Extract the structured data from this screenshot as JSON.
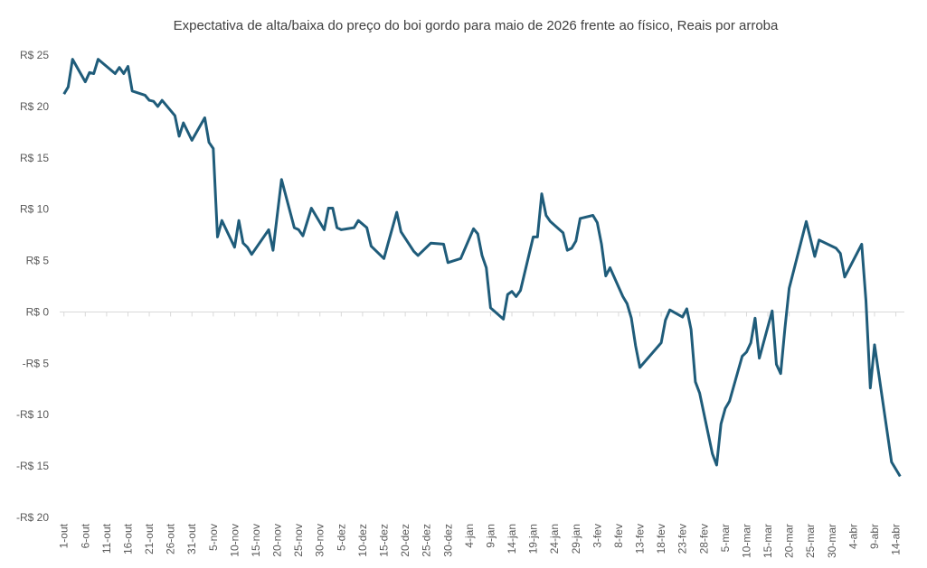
{
  "chart_data": {
    "type": "line",
    "title": "Expectativa de alta/baixa do preço do boi gordo para maio de 2026 frente ao físico, Reais por arroba",
    "x": [
      0,
      1,
      2,
      5,
      6,
      7,
      8,
      12,
      13,
      14,
      15,
      16,
      19,
      20,
      21,
      22,
      23,
      26,
      27,
      28,
      30,
      33,
      34,
      35,
      36,
      37,
      40,
      41,
      42,
      43,
      44,
      48,
      49,
      51,
      54,
      55,
      56,
      58,
      61,
      62,
      63,
      64,
      65,
      68,
      69,
      71,
      72,
      75,
      76,
      78,
      79,
      82,
      83,
      86,
      89,
      90,
      93,
      96,
      97,
      98,
      99,
      100,
      103,
      104,
      105,
      106,
      107,
      110,
      111,
      112,
      113,
      114,
      117,
      118,
      119,
      120,
      121,
      124,
      125,
      126,
      127,
      128,
      131,
      132,
      133,
      134,
      135,
      140,
      141,
      142,
      145,
      146,
      147,
      148,
      149,
      152,
      153,
      154,
      155,
      156,
      159,
      160,
      161,
      162,
      163,
      166,
      167,
      168,
      169,
      170,
      174,
      176,
      177,
      180,
      181,
      182,
      183,
      187,
      188,
      189,
      190,
      194,
      196
    ],
    "series": [
      {
        "name": "Expectativa",
        "color": "#1f5c7a",
        "values": [
          21.2,
          21.9,
          24.6,
          22.4,
          23.3,
          23.2,
          24.6,
          23.2,
          23.8,
          23.2,
          23.9,
          21.5,
          21.1,
          20.6,
          20.5,
          20.0,
          20.6,
          19.1,
          17.1,
          18.4,
          16.7,
          18.9,
          16.5,
          15.9,
          7.3,
          8.9,
          6.3,
          8.9,
          6.7,
          6.3,
          5.6,
          8.0,
          6.0,
          12.9,
          8.2,
          8.0,
          7.4,
          10.1,
          8.0,
          10.1,
          10.1,
          8.2,
          8.0,
          8.2,
          8.9,
          8.2,
          6.4,
          5.2,
          6.7,
          9.7,
          7.8,
          5.9,
          5.5,
          6.7,
          6.6,
          4.8,
          5.2,
          8.1,
          7.6,
          5.5,
          4.3,
          0.4,
          -0.7,
          1.7,
          2.0,
          1.5,
          2.1,
          7.3,
          7.3,
          11.5,
          9.4,
          8.8,
          7.7,
          6.0,
          6.2,
          6.9,
          9.1,
          9.4,
          8.7,
          6.6,
          3.5,
          4.3,
          1.5,
          0.8,
          -0.6,
          -3.3,
          -5.4,
          -3.0,
          -0.8,
          0.2,
          -0.5,
          0.3,
          -1.7,
          -6.8,
          -7.9,
          -13.8,
          -14.9,
          -10.9,
          -9.4,
          -8.7,
          -4.3,
          -3.9,
          -3.0,
          -0.6,
          -4.5,
          0.1,
          -5.1,
          -6.0,
          -1.6,
          2.3,
          8.8,
          5.4,
          7.0,
          6.4,
          6.2,
          5.7,
          3.4,
          6.6,
          1.1,
          -7.4,
          -3.2,
          -14.6,
          -16.0
        ]
      }
    ],
    "xlim": [
      -1,
      197
    ],
    "xticks": [
      {
        "value": 0,
        "label": "1-out"
      },
      {
        "value": 5,
        "label": "6-out"
      },
      {
        "value": 10,
        "label": "11-out"
      },
      {
        "value": 15,
        "label": "16-out"
      },
      {
        "value": 20,
        "label": "21-out"
      },
      {
        "value": 25,
        "label": "26-out"
      },
      {
        "value": 30,
        "label": "31-out"
      },
      {
        "value": 35,
        "label": "5-nov"
      },
      {
        "value": 40,
        "label": "10-nov"
      },
      {
        "value": 45,
        "label": "15-nov"
      },
      {
        "value": 50,
        "label": "20-nov"
      },
      {
        "value": 55,
        "label": "25-nov"
      },
      {
        "value": 60,
        "label": "30-nov"
      },
      {
        "value": 65,
        "label": "5-dez"
      },
      {
        "value": 70,
        "label": "10-dez"
      },
      {
        "value": 75,
        "label": "15-dez"
      },
      {
        "value": 80,
        "label": "20-dez"
      },
      {
        "value": 85,
        "label": "25-dez"
      },
      {
        "value": 90,
        "label": "30-dez"
      },
      {
        "value": 95,
        "label": "4-jan"
      },
      {
        "value": 100,
        "label": "9-jan"
      },
      {
        "value": 105,
        "label": "14-jan"
      },
      {
        "value": 110,
        "label": "19-jan"
      },
      {
        "value": 115,
        "label": "24-jan"
      },
      {
        "value": 120,
        "label": "29-jan"
      },
      {
        "value": 125,
        "label": "3-fev"
      },
      {
        "value": 130,
        "label": "8-fev"
      },
      {
        "value": 135,
        "label": "13-fev"
      },
      {
        "value": 140,
        "label": "18-fev"
      },
      {
        "value": 145,
        "label": "23-fev"
      },
      {
        "value": 150,
        "label": "28-fev"
      },
      {
        "value": 155,
        "label": "5-mar"
      },
      {
        "value": 160,
        "label": "10-mar"
      },
      {
        "value": 165,
        "label": "15-mar"
      },
      {
        "value": 170,
        "label": "20-mar"
      },
      {
        "value": 175,
        "label": "25-mar"
      },
      {
        "value": 180,
        "label": "30-mar"
      },
      {
        "value": 185,
        "label": "4-abr"
      },
      {
        "value": 190,
        "label": "9-abr"
      },
      {
        "value": 195,
        "label": "14-abr"
      }
    ],
    "ylim": [
      -20,
      25
    ],
    "yticks": [
      {
        "value": -20,
        "label": "-R$ 20"
      },
      {
        "value": -15,
        "label": "-R$ 15"
      },
      {
        "value": -10,
        "label": "-R$ 10"
      },
      {
        "value": -5,
        "label": "-R$ 5"
      },
      {
        "value": 0,
        "label": "R$ 0"
      },
      {
        "value": 5,
        "label": "R$ 5"
      },
      {
        "value": 10,
        "label": "R$ 10"
      },
      {
        "value": 15,
        "label": "R$ 15"
      },
      {
        "value": 20,
        "label": "R$ 20"
      },
      {
        "value": 25,
        "label": "R$ 25"
      }
    ]
  }
}
